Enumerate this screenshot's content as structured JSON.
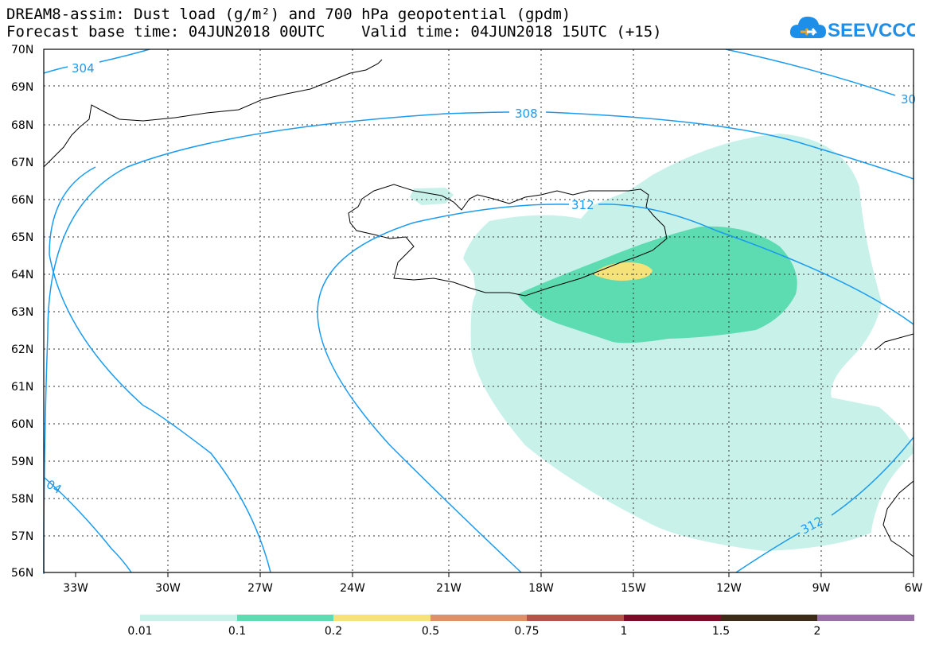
{
  "header": {
    "title_line1": "DREAM8-assim: Dust load (g/m²) and 700 hPa geopotential (gpdm)",
    "title_line2": "Forecast base time: 04JUN2018 00UTC    Valid time: 04JUN2018 15UTC (+15)"
  },
  "logo": {
    "text": "SEEVCCC",
    "color": "#1e8fe8",
    "accent": "#f5a623"
  },
  "axes": {
    "lat_labels": [
      "70N",
      "69N",
      "68N",
      "67N",
      "66N",
      "65N",
      "64N",
      "63N",
      "62N",
      "61N",
      "60N",
      "59N",
      "58N",
      "57N",
      "56N"
    ],
    "lon_labels": [
      "33W",
      "30W",
      "27W",
      "24W",
      "21W",
      "18W",
      "15W",
      "12W",
      "9W",
      "6W"
    ]
  },
  "contours": {
    "color": "#1a9bf0",
    "labels": [
      "304",
      "308",
      "312",
      "30",
      "04",
      "312"
    ]
  },
  "legend": {
    "levels": [
      "0.01",
      "0.1",
      "0.2",
      "0.5",
      "0.75",
      "1",
      "1.5",
      "2"
    ],
    "colors": [
      "#c8f1ea",
      "#5ddbb1",
      "#f5e37a",
      "#e08f66",
      "#b5544a",
      "#7d0b28",
      "#3d2a17",
      "#9a70a8"
    ]
  }
}
